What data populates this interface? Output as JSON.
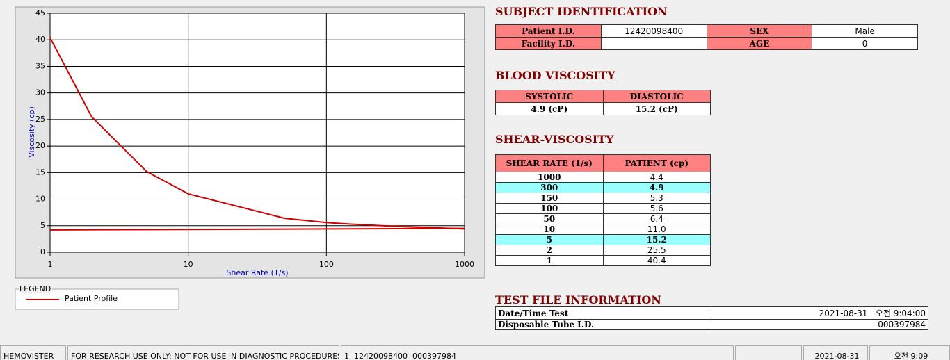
{
  "chart": {
    "type": "line",
    "x_label": "Shear Rate (1/s)",
    "y_label": "Viscosity (cp)",
    "xlim": [
      1,
      1000
    ],
    "ylim": [
      0,
      45
    ],
    "xticks": [
      1,
      10,
      100,
      1000
    ],
    "yticks": [
      0,
      5,
      10,
      15,
      20,
      25,
      30,
      35,
      40,
      45
    ],
    "x_log": true,
    "grid": true,
    "series": [
      {
        "name": "Patient Profile",
        "color": "#d00000",
        "x": [
          1,
          2,
          5,
          10,
          50,
          100,
          150,
          300,
          1000
        ],
        "values": [
          40.4,
          25.5,
          15.2,
          11.0,
          6.4,
          5.6,
          5.3,
          4.9,
          4.4
        ]
      },
      {
        "color": "#d00000",
        "x": [
          1,
          1000
        ],
        "values": [
          4.2,
          4.5
        ]
      }
    ]
  },
  "legend_title": "LEGEND",
  "subject": {
    "title": "SUBJECT IDENTIFICATION",
    "rows": [
      [
        "Patient I.D.",
        "12420098400",
        "SEX",
        "Male"
      ],
      [
        "Facility I.D.",
        null,
        "AGE",
        "0"
      ]
    ]
  },
  "blood": {
    "title": "BLOOD VISCOSITY",
    "header": [
      "SYSTOLIC",
      "DIASTOLIC"
    ],
    "row": [
      "4.9 (cP)",
      "15.2 (cP)"
    ]
  },
  "shear": {
    "title": "SHEAR-VISCOSITY",
    "header": [
      "SHEAR RATE (1/s)",
      "PATIENT (cp)"
    ],
    "rows": [
      [
        "1000",
        "4.4"
      ],
      [
        "300",
        "4.9"
      ],
      [
        "150",
        "5.3"
      ],
      [
        "100",
        "5.6"
      ],
      [
        "50",
        "6.4"
      ],
      [
        "10",
        "11.0"
      ],
      [
        "5",
        "15.2"
      ],
      [
        "2",
        "25.5"
      ],
      [
        "1",
        "40.4"
      ]
    ],
    "highlight_rows": [
      1,
      6
    ]
  },
  "test_file": {
    "title": "TEST FILE INFORMATION",
    "rows": [
      [
        "Date/Time Test",
        "2021-08-31   오전 9:04:00"
      ],
      [
        "Disposable Tube I.D.",
        "000397984"
      ]
    ]
  },
  "status_bar": [
    "HEMOVISTER",
    "FOR RESEARCH USE ONLY: NOT FOR USE IN DIAGNOSTIC PROCEDURES",
    "1  12420098400  000397984",
    "2021-08-31",
    "오전 9:09"
  ]
}
